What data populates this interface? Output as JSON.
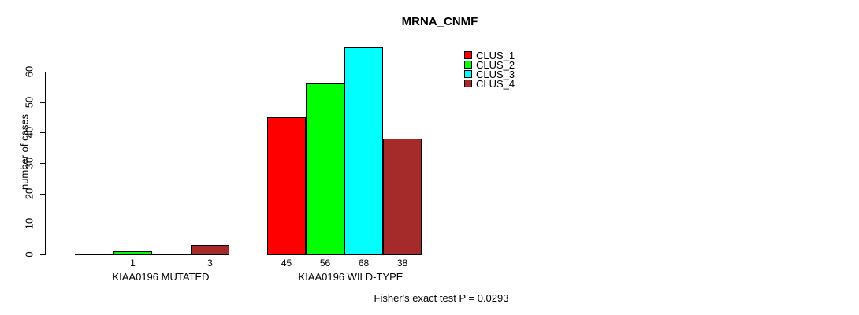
{
  "chart_data": {
    "type": "bar",
    "title": "MRNA_CNMF",
    "ylabel": "number of cases",
    "xlabel": "",
    "yticks": [
      0,
      10,
      20,
      30,
      40,
      50,
      60
    ],
    "ylim": [
      0,
      68
    ],
    "grid": false,
    "legend_position": "top-right",
    "series": [
      {
        "name": "CLUS_1",
        "color": "#FF0000"
      },
      {
        "name": "CLUS_2",
        "color": "#00FF00"
      },
      {
        "name": "CLUS_3",
        "color": "#00FFFF"
      },
      {
        "name": "CLUS_4",
        "color": "#A52A2A"
      }
    ],
    "categories": [
      "KIAA0196 MUTATED",
      "KIAA0196 WILD-TYPE"
    ],
    "groups": [
      {
        "label": "KIAA0196 MUTATED",
        "values": [
          0,
          1,
          0,
          3
        ],
        "value_labels": [
          "",
          "1",
          "",
          "3"
        ]
      },
      {
        "label": "KIAA0196 WILD-TYPE",
        "values": [
          45,
          56,
          68,
          38
        ],
        "value_labels": [
          "45",
          "56",
          "68",
          "38"
        ]
      }
    ],
    "annotation": "Fisher's exact test P = 0.0293"
  }
}
